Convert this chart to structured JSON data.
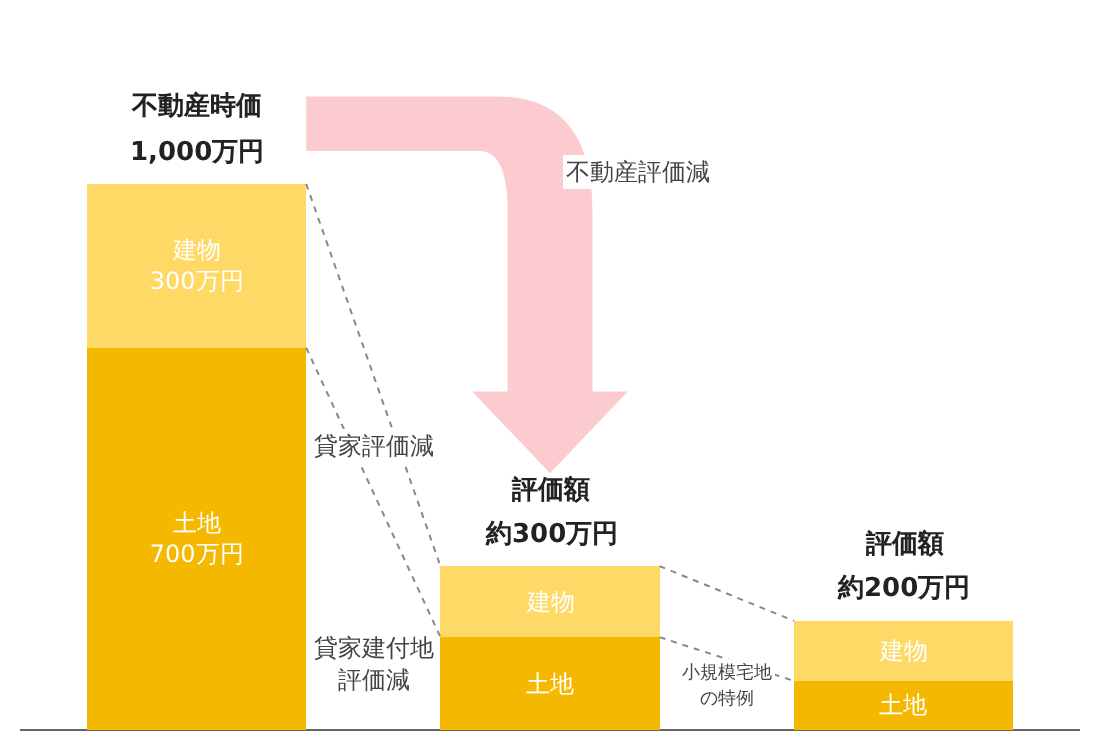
{
  "chart_data": {
    "type": "bar",
    "stacked": true,
    "categories": [
      null,
      null,
      null
    ],
    "series": [
      {
        "color": "#f5b800",
        "values": [
          700,
          170,
          90
        ],
        "value_labels": [
          "土地\n700万円",
          "土地",
          "土地"
        ]
      },
      {
        "color": "#ffd966",
        "values": [
          300,
          130,
          110
        ],
        "value_labels": [
          "建物\n300万円",
          "建物",
          "建物"
        ]
      }
    ],
    "totals": [
      "1,000万円",
      "約300万円",
      "約200万円"
    ],
    "annotations": [
      "不動産時価",
      "評価額",
      "評価額",
      "不動産評価減",
      "貸家評価減",
      "貸家建付地",
      "評価減",
      "小規模宅地",
      "の特例"
    ],
    "grid": false,
    "legend": false,
    "tick_labels": false
  }
}
